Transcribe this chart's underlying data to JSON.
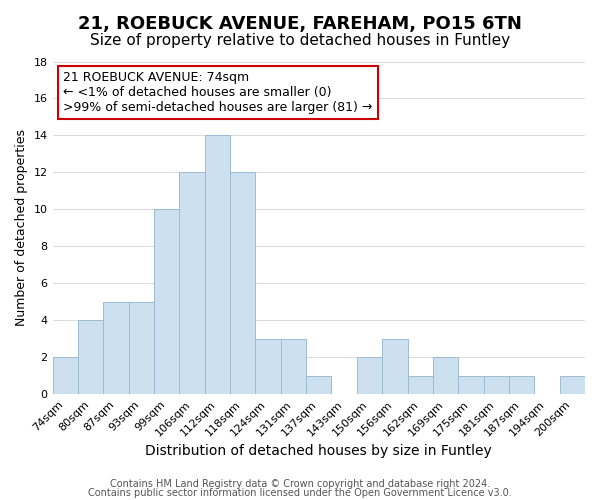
{
  "title": "21, ROEBUCK AVENUE, FAREHAM, PO15 6TN",
  "subtitle": "Size of property relative to detached houses in Funtley",
  "xlabel": "Distribution of detached houses by size in Funtley",
  "ylabel": "Number of detached properties",
  "bar_labels": [
    "74sqm",
    "80sqm",
    "87sqm",
    "93sqm",
    "99sqm",
    "106sqm",
    "112sqm",
    "118sqm",
    "124sqm",
    "131sqm",
    "137sqm",
    "143sqm",
    "150sqm",
    "156sqm",
    "162sqm",
    "169sqm",
    "175sqm",
    "181sqm",
    "187sqm",
    "194sqm",
    "200sqm"
  ],
  "bar_values": [
    2,
    4,
    5,
    5,
    10,
    12,
    14,
    12,
    3,
    3,
    1,
    0,
    2,
    3,
    1,
    2,
    1,
    1,
    1,
    0,
    1
  ],
  "bar_color": "#cce0f0",
  "bar_edge_color": "#9bbdd4",
  "annotation_text": "21 ROEBUCK AVENUE: 74sqm\n← <1% of detached houses are smaller (0)\n>99% of semi-detached houses are larger (81) →",
  "annotation_box_color": "#ffffff",
  "annotation_border_color": "#cc0000",
  "ylim": [
    0,
    18
  ],
  "yticks": [
    0,
    2,
    4,
    6,
    8,
    10,
    12,
    14,
    16,
    18
  ],
  "footer_line1": "Contains HM Land Registry data © Crown copyright and database right 2024.",
  "footer_line2": "Contains public sector information licensed under the Open Government Licence v3.0.",
  "title_fontsize": 13,
  "subtitle_fontsize": 11,
  "xlabel_fontsize": 10,
  "ylabel_fontsize": 9,
  "tick_fontsize": 8,
  "footer_fontsize": 7,
  "annotation_fontsize": 9
}
